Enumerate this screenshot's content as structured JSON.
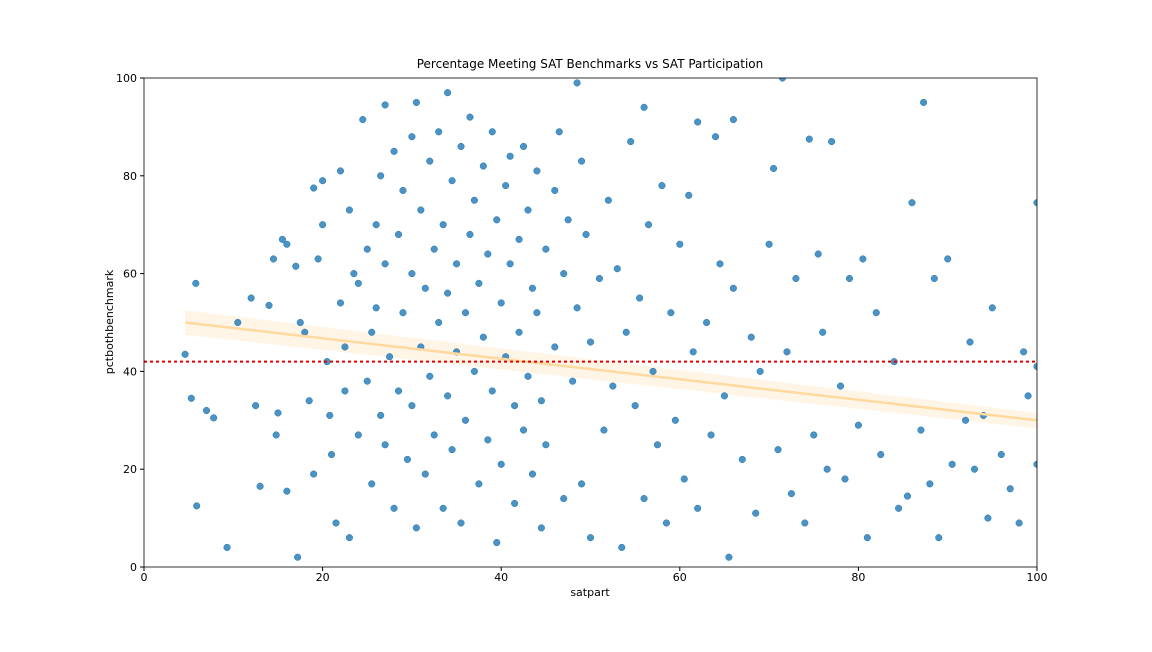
{
  "chart_data": {
    "type": "scatter",
    "title": "Percentage Meeting SAT Benchmarks vs SAT Participation",
    "x_label": "satpart",
    "y_label": "pctbothbenchmark",
    "xlim": [
      0,
      100
    ],
    "ylim": [
      0,
      100
    ],
    "xticks": [
      0,
      20,
      40,
      60,
      80,
      100
    ],
    "yticks": [
      0,
      20,
      40,
      60,
      80,
      100
    ],
    "color": "#1f77b4",
    "x": [
      4.6,
      5.3,
      5.8,
      5.9,
      7,
      7.8,
      9.3,
      10.5,
      12,
      12.5,
      13,
      14,
      14.5,
      14.8,
      15,
      15.5,
      16,
      16,
      17,
      17.2,
      17.5,
      18,
      18.5,
      19,
      19,
      19.5,
      20,
      20,
      20.5,
      20.8,
      21,
      21.5,
      22,
      22,
      22.5,
      22.5,
      23,
      23,
      23.5,
      24,
      24,
      24.5,
      25,
      25,
      25.5,
      25.5,
      26,
      26,
      26.5,
      26.5,
      27,
      27,
      27,
      27.5,
      28,
      28,
      28.5,
      28.5,
      29,
      29,
      29.5,
      30,
      30,
      30,
      30.5,
      30.5,
      31,
      31,
      31.5,
      31.5,
      32,
      32,
      32.5,
      32.5,
      33,
      33,
      33.5,
      33.5,
      34,
      34,
      34,
      34.5,
      34.5,
      35,
      35,
      35.5,
      35.5,
      36,
      36,
      36.5,
      36.5,
      37,
      37,
      37.5,
      37.5,
      38,
      38,
      38.5,
      38.5,
      39,
      39,
      39.5,
      39.5,
      40,
      40,
      40.5,
      40.5,
      41,
      41,
      41.5,
      41.5,
      42,
      42,
      42.5,
      42.5,
      43,
      43,
      43.5,
      43.5,
      44,
      44,
      44.5,
      44.5,
      45,
      45,
      46,
      46,
      46.5,
      47,
      47,
      47.5,
      48,
      48.5,
      48.5,
      49,
      49,
      49.5,
      50,
      50,
      51,
      51.5,
      52,
      52.5,
      53,
      53.5,
      54,
      54.5,
      55,
      55.5,
      56,
      56,
      56.5,
      57,
      57.5,
      58,
      58.5,
      59,
      59.5,
      60,
      60.5,
      61,
      61.5,
      62,
      62,
      63,
      63.5,
      64,
      64.5,
      65,
      65.5,
      66,
      66,
      67,
      68,
      68.5,
      69,
      70,
      70.5,
      71,
      72,
      72.5,
      73,
      74,
      74.5,
      75,
      75.5,
      76,
      76.5,
      77,
      78,
      78.5,
      79,
      80,
      80.5,
      81,
      82,
      82.5,
      84,
      84.5,
      85.5,
      86,
      87,
      87.3,
      88,
      88.5,
      89,
      90,
      90.5,
      92,
      92.5,
      93,
      94,
      94.5,
      95,
      96,
      97,
      98,
      98.5,
      99,
      100,
      100,
      100,
      71.5
    ],
    "values": [
      43.5,
      34.5,
      58,
      12.5,
      32,
      30.5,
      4,
      50,
      55,
      33,
      16.5,
      53.5,
      63,
      27,
      31.5,
      67,
      66,
      15.5,
      61.5,
      2,
      50,
      48,
      34,
      77.5,
      19,
      63,
      79,
      70,
      42,
      31,
      23,
      9,
      81,
      54,
      45,
      36,
      73,
      6,
      60,
      58,
      27,
      91.5,
      65,
      38,
      48,
      17,
      70,
      53,
      80,
      31,
      94.5,
      62,
      25,
      43,
      85,
      12,
      68,
      36,
      77,
      52,
      22,
      88,
      60,
      33,
      95,
      8,
      73,
      45,
      57,
      19,
      83,
      39,
      65,
      27,
      89,
      50,
      70,
      12,
      97,
      56,
      35,
      79,
      24,
      62,
      44,
      86,
      9,
      52,
      30,
      92,
      68,
      75,
      40,
      58,
      17,
      82,
      47,
      64,
      26,
      89,
      36,
      71,
      5,
      54,
      21,
      78,
      43,
      84,
      62,
      33,
      13,
      67,
      48,
      86,
      28,
      73,
      39,
      57,
      19,
      81,
      52,
      34,
      8,
      65,
      25,
      77,
      45,
      89,
      60,
      14,
      71,
      38,
      99,
      53,
      83,
      17,
      68,
      46,
      6,
      59,
      28,
      75,
      37,
      61,
      4,
      48,
      87,
      33,
      55,
      94,
      14,
      70,
      40,
      25,
      78,
      9,
      52,
      30,
      66,
      18,
      76,
      44,
      91,
      12,
      50,
      27,
      88,
      62,
      35,
      2,
      91.5,
      57,
      22,
      47,
      11,
      40,
      66,
      81.5,
      24,
      44,
      15,
      59,
      9,
      87.5,
      27,
      64,
      48,
      20,
      87,
      37,
      18,
      59,
      29,
      63,
      6,
      52,
      23,
      42,
      12,
      14.5,
      74.5,
      28,
      95,
      17,
      59,
      6,
      63,
      21,
      30,
      46,
      20,
      31,
      10,
      53,
      23,
      16,
      9,
      44,
      35,
      74.5,
      41,
      21,
      100
    ],
    "trend_line": {
      "x": [
        4.6,
        100
      ],
      "values": [
        50,
        30
      ],
      "upper": [
        52.5,
        31.5
      ],
      "lower": [
        47.5,
        28.3
      ],
      "color": "#ffd9a0"
    },
    "reference_line": {
      "value": 42,
      "color": "#e00000"
    }
  }
}
